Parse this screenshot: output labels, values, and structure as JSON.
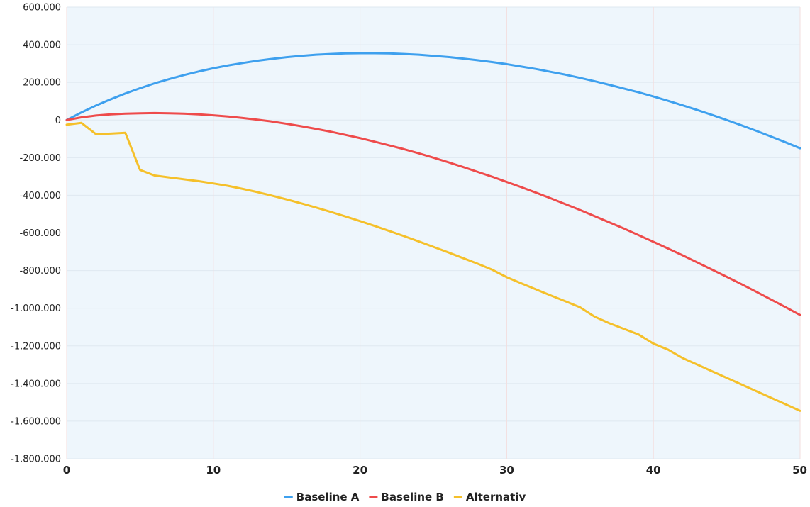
{
  "chart_data": {
    "type": "line",
    "title": "",
    "xlabel": "",
    "ylabel": "",
    "xlim": [
      0,
      50
    ],
    "ylim": [
      -1800000,
      600000
    ],
    "x_ticks": [
      0,
      10,
      20,
      30,
      40,
      50
    ],
    "x_tick_labels": [
      "0",
      "10",
      "20",
      "30",
      "40",
      "50"
    ],
    "y_ticks": [
      600000,
      400000,
      200000,
      0,
      -200000,
      -400000,
      -600000,
      -800000,
      -1000000,
      -1200000,
      -1400000,
      -1600000,
      -1800000
    ],
    "y_tick_labels": [
      "600.000",
      "400.000",
      "200.000",
      "0",
      "-200.000",
      "-400.000",
      "-600.000",
      "-800.000",
      "-1.000.000",
      "-1.200.000",
      "-1.400.000",
      "-1.600.000",
      "-1.800.000"
    ],
    "grid": true,
    "legend_position": "bottom-center",
    "plot_background": "#eef6fc",
    "x": [
      0,
      1,
      2,
      3,
      4,
      5,
      6,
      7,
      8,
      9,
      10,
      11,
      12,
      13,
      14,
      15,
      16,
      17,
      18,
      19,
      20,
      21,
      22,
      23,
      24,
      25,
      26,
      27,
      28,
      29,
      30,
      31,
      32,
      33,
      34,
      35,
      36,
      37,
      38,
      39,
      40,
      41,
      42,
      43,
      44,
      45,
      46,
      47,
      48,
      49,
      50
    ],
    "series": [
      {
        "name": "Baseline A",
        "color": "#3ea0ee",
        "values": [
          0,
          40000,
          77000,
          110000,
          141000,
          169000,
          195000,
          218000,
          239000,
          258000,
          275000,
          290000,
          303000,
          315000,
          325000,
          334000,
          341000,
          347000,
          351000,
          354000,
          355000,
          355000,
          354000,
          351000,
          347000,
          341000,
          335000,
          327000,
          318000,
          308000,
          297000,
          284000,
          271000,
          256000,
          241000,
          224000,
          206000,
          187000,
          167000,
          147000,
          125000,
          102000,
          78000,
          53000,
          27000,
          0,
          -28000,
          -57000,
          -87000,
          -118000,
          -150000
        ]
      },
      {
        "name": "Baseline B",
        "color": "#ee4b4b",
        "values": [
          0,
          14000,
          24000,
          30000,
          34000,
          36000,
          37000,
          36000,
          34000,
          30000,
          25000,
          19000,
          11000,
          2000,
          -8000,
          -20000,
          -33000,
          -47000,
          -62000,
          -79000,
          -96000,
          -115000,
          -135000,
          -155000,
          -177000,
          -200000,
          -224000,
          -249000,
          -275000,
          -301000,
          -329000,
          -357000,
          -386000,
          -416000,
          -447000,
          -478000,
          -511000,
          -544000,
          -577000,
          -612000,
          -647000,
          -683000,
          -719000,
          -757000,
          -795000,
          -833000,
          -872000,
          -912000,
          -953000,
          -994000,
          -1036000
        ]
      },
      {
        "name": "Alternativ",
        "color": "#f5c02a",
        "values": [
          -25000,
          -15000,
          -75000,
          -72000,
          -68000,
          -265000,
          -295000,
          -305000,
          -315000,
          -325000,
          -337000,
          -350000,
          -366000,
          -383000,
          -402000,
          -422000,
          -443000,
          -465000,
          -488000,
          -512000,
          -537000,
          -563000,
          -590000,
          -617000,
          -645000,
          -674000,
          -703000,
          -733000,
          -763000,
          -795000,
          -835000,
          -868000,
          -900000,
          -932000,
          -963000,
          -995000,
          -1045000,
          -1080000,
          -1110000,
          -1140000,
          -1188000,
          -1220000,
          -1265000,
          -1300000,
          -1335000,
          -1370000,
          -1405000,
          -1440000,
          -1475000,
          -1510000,
          -1545000
        ]
      }
    ]
  }
}
